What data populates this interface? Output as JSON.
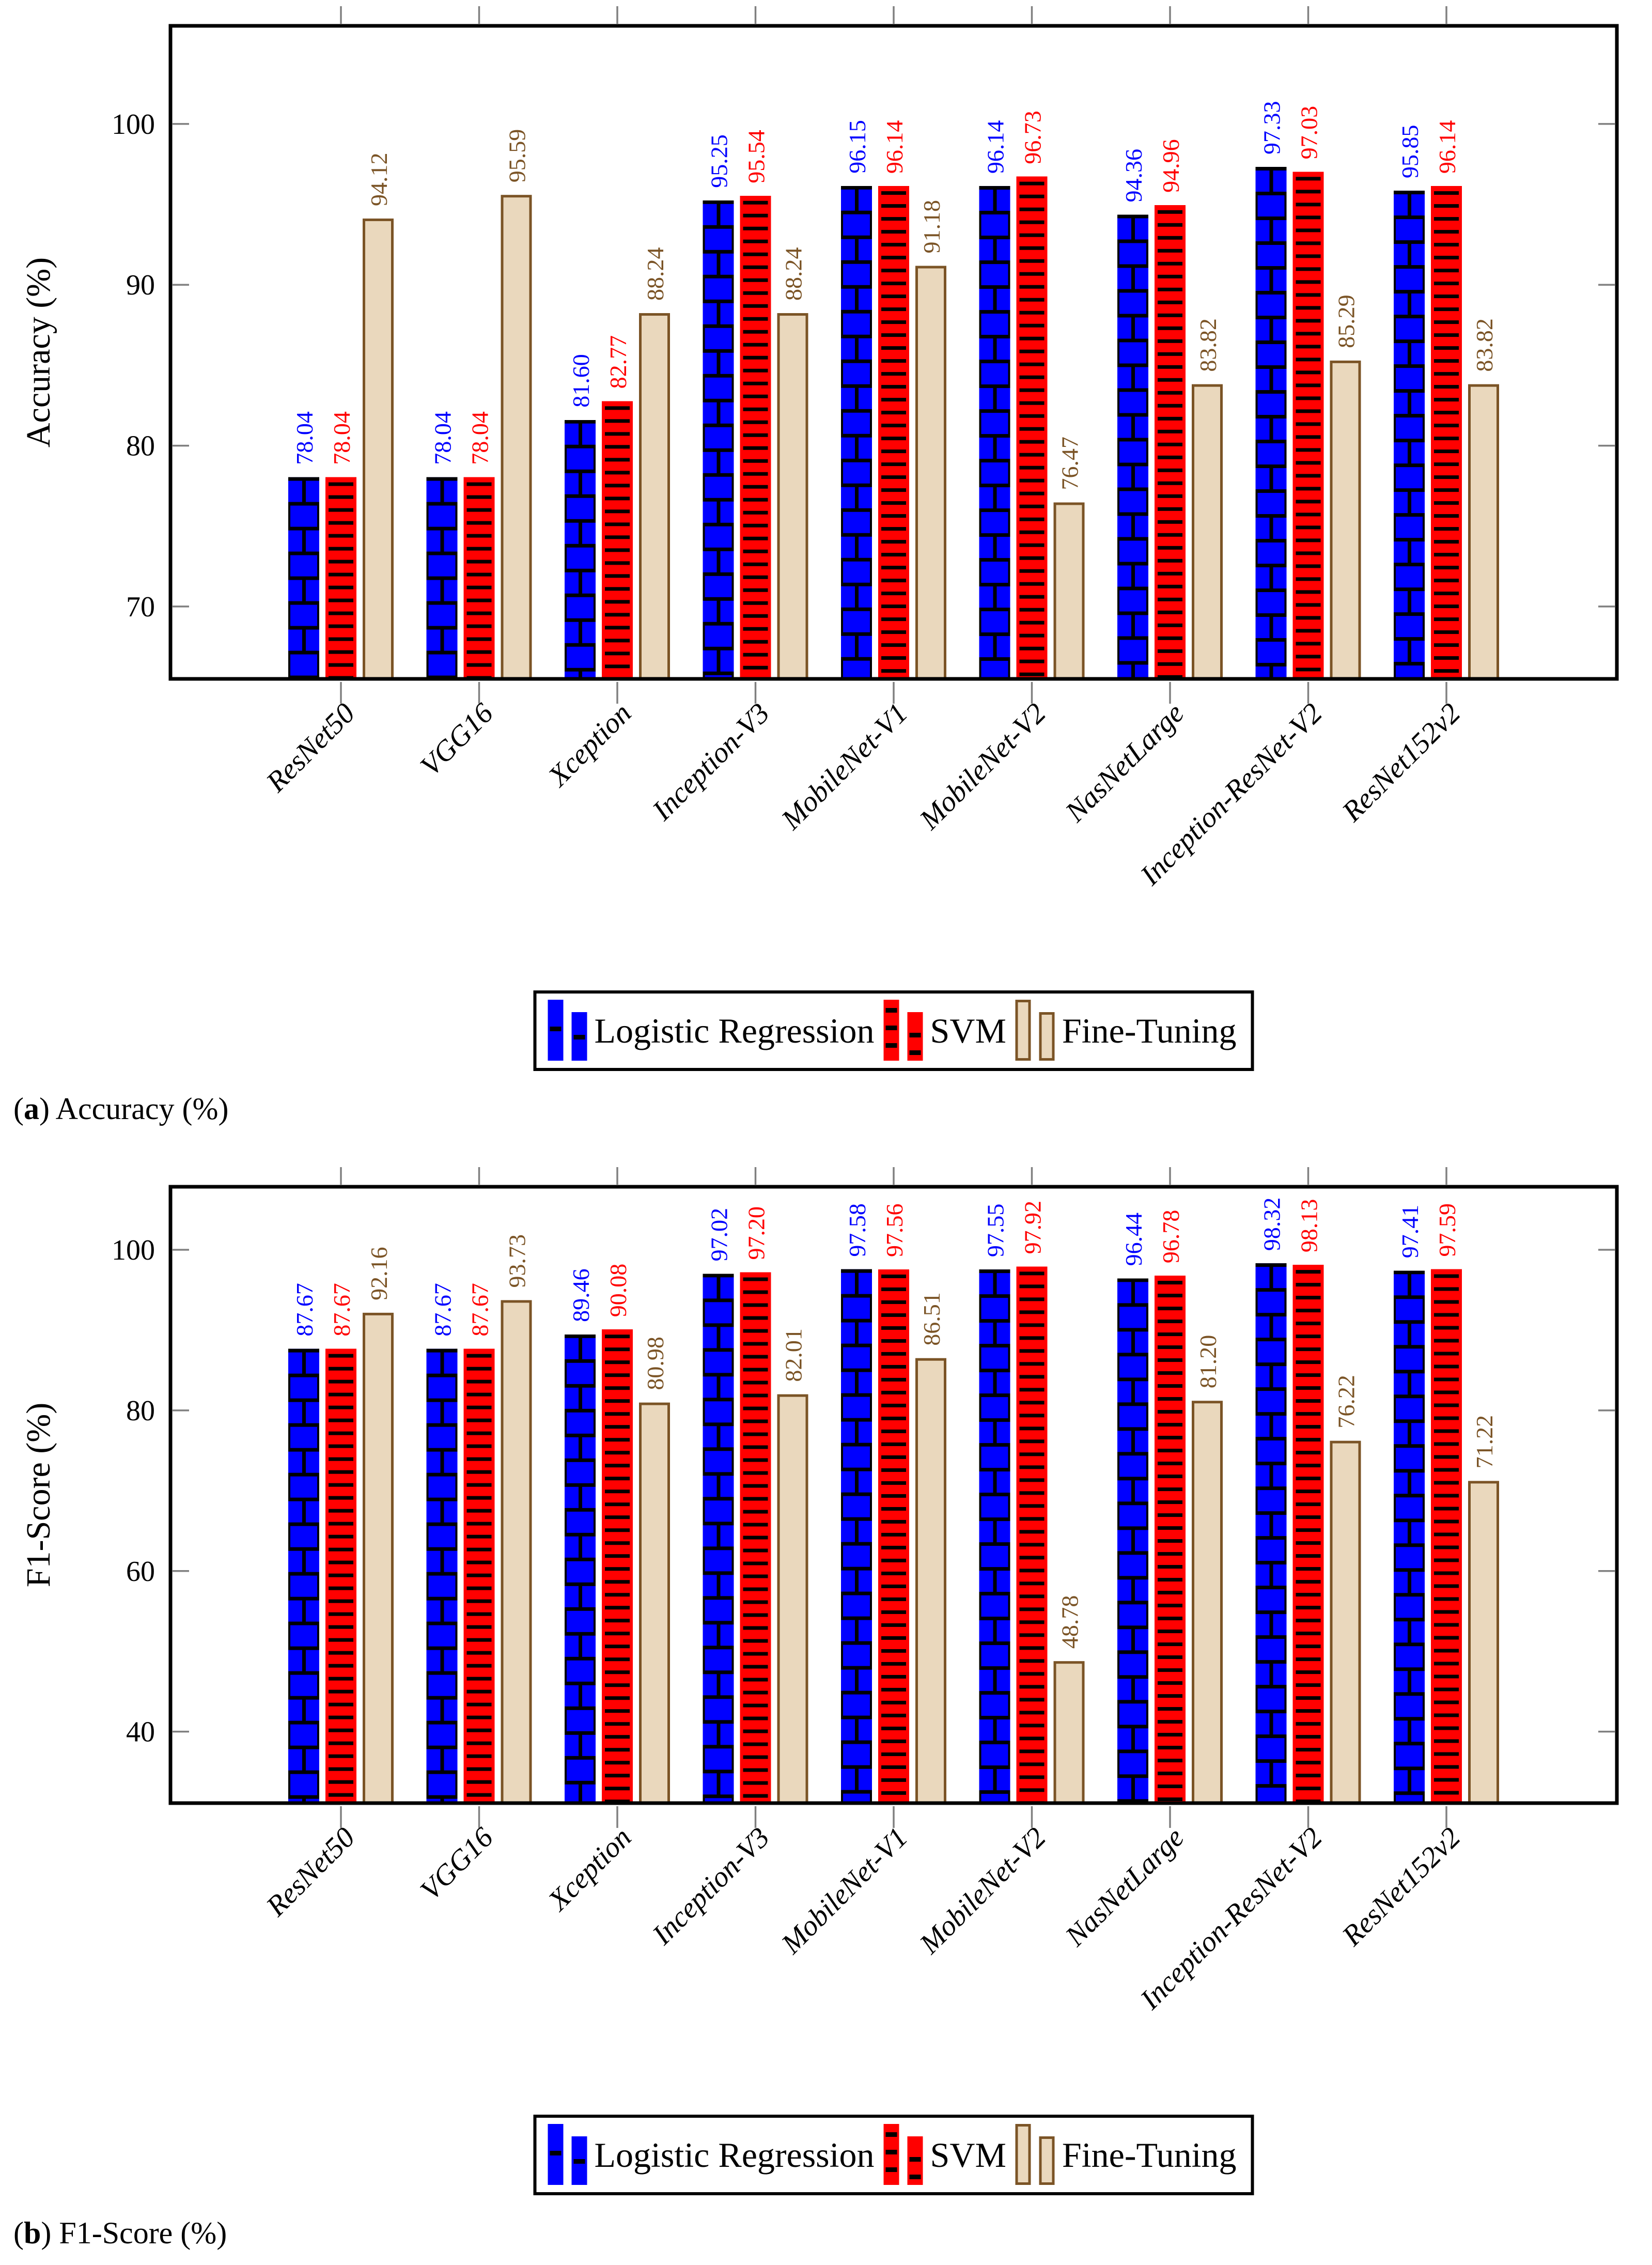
{
  "style": {
    "background": "#ffffff",
    "frame_color": "#000000",
    "tick_color": "#808080",
    "series_colors": {
      "logistic_regression": "#0000ff",
      "svm": "#ff0000",
      "fine_tuning_fill": "#ead8bd",
      "fine_tuning_border": "#7b5426"
    },
    "value_label_colors": [
      "#0000ff",
      "#ff0000",
      "#7b5426"
    ]
  },
  "legend": {
    "items": [
      {
        "icon": "blue-brick-bars-swatch",
        "label": "Logistic Regression"
      },
      {
        "icon": "red-dash-bars-swatch",
        "label": "SVM"
      },
      {
        "icon": "tan-plain-bars-swatch",
        "label": "Fine-Tuning"
      }
    ]
  },
  "captions": [
    {
      "open": "(",
      "letter": "a",
      "rest": ") Accuracy (%)"
    },
    {
      "open": "(",
      "letter": "b",
      "rest": ") F1-Score (%)"
    }
  ],
  "chart_data": [
    {
      "type": "bar",
      "title": "(a) Accuracy (%)",
      "ylabel": "Accuracy (%)",
      "xlabel": "",
      "categories": [
        "ResNet50",
        "VGG16",
        "Xception",
        "Inception-V3",
        "MobileNet-V1",
        "MobileNet-V2",
        "NasNetLarge",
        "Inception-ResNet-V2",
        "ResNet152v2"
      ],
      "series": [
        {
          "name": "Logistic Regression",
          "values": [
            "78.04",
            "78.04",
            "81.60",
            "95.25",
            "96.15",
            "96.14",
            "94.36",
            "97.33",
            "95.85"
          ]
        },
        {
          "name": "SVM",
          "values": [
            "78.04",
            "78.04",
            "82.77",
            "95.54",
            "96.14",
            "96.73",
            "94.96",
            "97.03",
            "96.14"
          ]
        },
        {
          "name": "Fine-Tuning",
          "values": [
            "94.12",
            "95.59",
            "88.24",
            "88.24",
            "91.18",
            "76.47",
            "83.82",
            "85.29",
            "83.82"
          ]
        }
      ],
      "yticks": [
        70,
        80,
        90,
        100
      ],
      "ylim": [
        65.5,
        106.1
      ],
      "grid": false,
      "legend_position": "below"
    },
    {
      "type": "bar",
      "title": "(b) F1-Score (%)",
      "ylabel": "F1-Score (%)",
      "xlabel": "",
      "categories": [
        "ResNet50",
        "VGG16",
        "Xception",
        "Inception-V3",
        "MobileNet-V1",
        "MobileNet-V2",
        "NasNetLarge",
        "Inception-ResNet-V2",
        "ResNet152v2"
      ],
      "series": [
        {
          "name": "Logistic Regression",
          "values": [
            "87.67",
            "87.67",
            "89.46",
            "97.02",
            "97.58",
            "97.55",
            "96.44",
            "98.32",
            "97.41"
          ]
        },
        {
          "name": "SVM",
          "values": [
            "87.67",
            "87.67",
            "90.08",
            "97.20",
            "97.56",
            "97.92",
            "96.78",
            "98.13",
            "97.59"
          ]
        },
        {
          "name": "Fine-Tuning",
          "values": [
            "92.16",
            "93.73",
            "80.98",
            "82.01",
            "86.51",
            "48.78",
            "81.20",
            "76.22",
            "71.22"
          ]
        }
      ],
      "yticks": [
        40,
        60,
        80,
        100
      ],
      "ylim": [
        31.1,
        107.85
      ],
      "grid": false,
      "legend_position": "below"
    }
  ]
}
